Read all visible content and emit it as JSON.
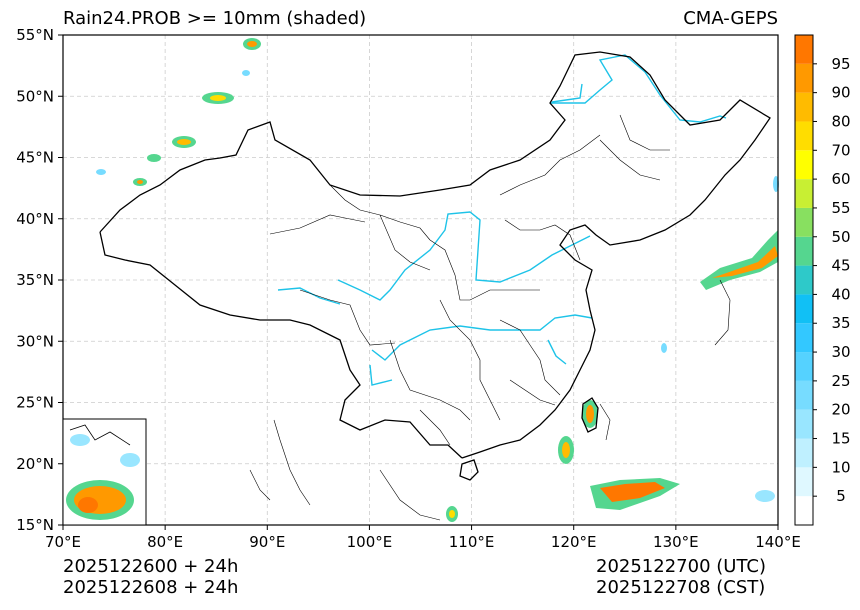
{
  "header": {
    "title_left": "Rain24.PROB >= 10mm (shaded)",
    "title_right": "CMA-GEPS"
  },
  "axes": {
    "lat_labels": [
      "55°N",
      "50°N",
      "45°N",
      "40°N",
      "35°N",
      "30°N",
      "25°N",
      "20°N",
      "15°N"
    ],
    "lat_values": [
      55,
      50,
      45,
      40,
      35,
      30,
      25,
      20,
      15
    ],
    "lon_labels": [
      "70°E",
      "80°E",
      "90°E",
      "100°E",
      "110°E",
      "120°E",
      "130°E",
      "140°E"
    ],
    "lon_values": [
      70,
      80,
      90,
      100,
      110,
      120,
      130,
      140
    ],
    "lat_range": [
      15,
      55
    ],
    "lon_range": [
      70,
      140
    ]
  },
  "colorbar": {
    "labels": [
      "5",
      "10",
      "15",
      "20",
      "25",
      "30",
      "35",
      "40",
      "45",
      "50",
      "55",
      "60",
      "70",
      "80",
      "90",
      "95"
    ],
    "colors": [
      "#ffffff",
      "#dff8ff",
      "#bff0ff",
      "#99e6ff",
      "#77dcff",
      "#55d2ff",
      "#33c8ff",
      "#11c0f5",
      "#2ec9c9",
      "#55d68f",
      "#88e060",
      "#c8ef33",
      "#ffff00",
      "#ffdd00",
      "#ffbb00",
      "#ff9900",
      "#ff7700"
    ]
  },
  "footer": {
    "init_utc": "2025122600 + 24h",
    "init_cst": "2025122608 + 24h",
    "valid_utc": "2025122700 (UTC)",
    "valid_cst": "2025122708 (CST)"
  }
}
